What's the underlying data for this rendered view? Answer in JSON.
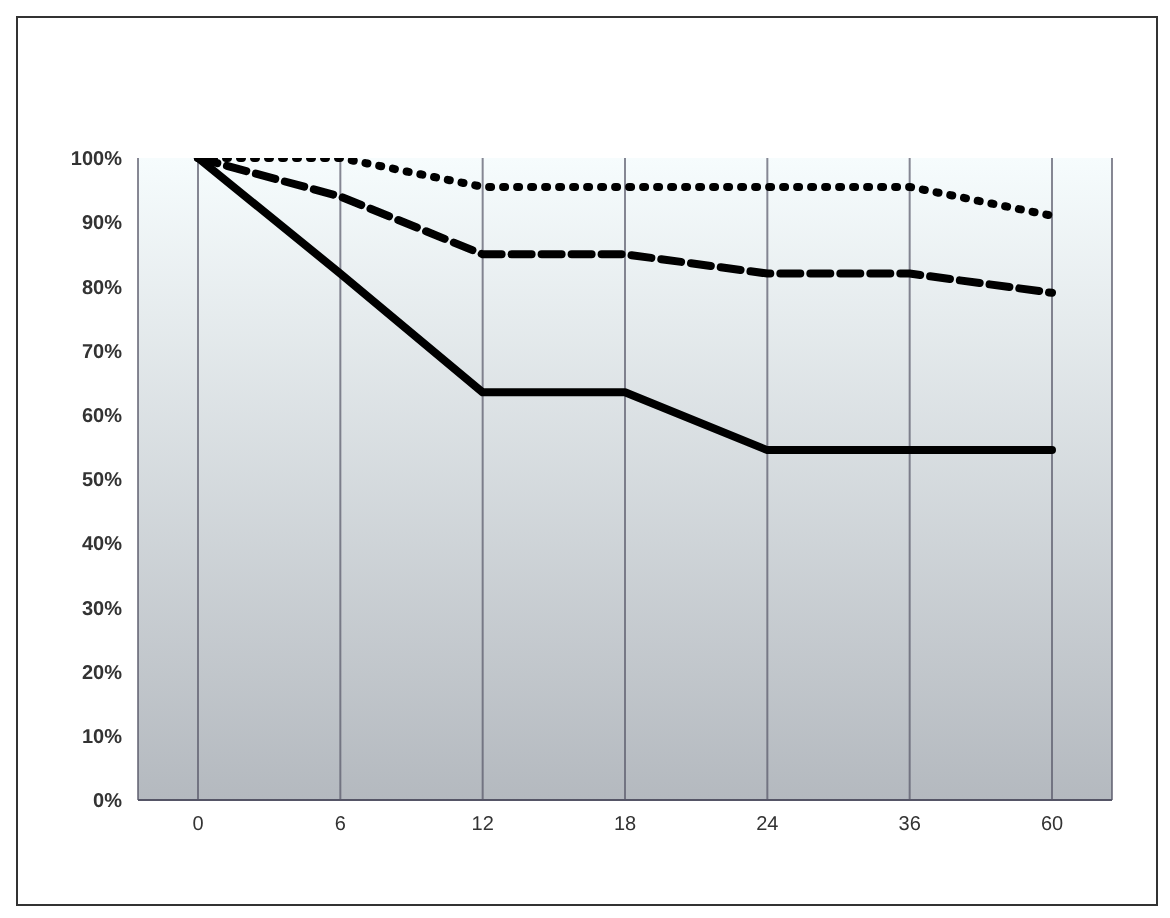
{
  "chart_data": {
    "type": "line",
    "categories": [
      "0",
      "6",
      "12",
      "18",
      "24",
      "36",
      "60"
    ],
    "series": [
      {
        "color": "#000000",
        "line_style": "dotted",
        "values": [
          100,
          100,
          95.5,
          95.5,
          95.5,
          95.5,
          91
        ]
      },
      {
        "color": "#000000",
        "line_style": "dashed",
        "values": [
          100,
          94,
          85,
          85,
          82,
          82,
          79
        ]
      },
      {
        "color": "#000000",
        "line_style": "solid",
        "values": [
          100,
          82,
          63.5,
          63.5,
          54.5,
          54.5,
          54.5
        ]
      }
    ],
    "ylim": [
      0,
      100
    ],
    "yticks": [
      {
        "value": 0,
        "label": "0%"
      },
      {
        "value": 10,
        "label": "10%"
      },
      {
        "value": 20,
        "label": "20%"
      },
      {
        "value": 30,
        "label": "30%"
      },
      {
        "value": 40,
        "label": "40%"
      },
      {
        "value": 50,
        "label": "50%"
      },
      {
        "value": 60,
        "label": "60%"
      },
      {
        "value": 70,
        "label": "70%"
      },
      {
        "value": 80,
        "label": "80%"
      },
      {
        "value": 90,
        "label": "90%"
      },
      {
        "value": 100,
        "label": "100%"
      }
    ],
    "grid": "x",
    "marker": "none",
    "legend": false
  }
}
